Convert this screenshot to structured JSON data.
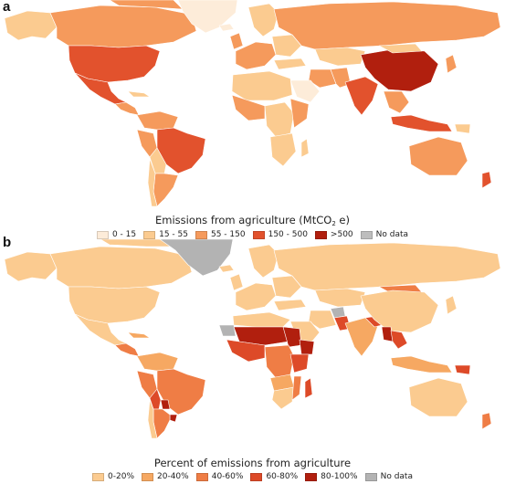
{
  "panel_a": {
    "letter": "a",
    "legend_title_prefix": "Emissions from agriculture (MtCO",
    "legend_title_sub": "2",
    "legend_title_suffix": " e)",
    "legend": [
      {
        "label": "0 - 15",
        "color": "#fdecd9"
      },
      {
        "label": "15 - 55",
        "color": "#fbcb90"
      },
      {
        "label": "55 - 150",
        "color": "#f59a5c"
      },
      {
        "label": "150 - 500",
        "color": "#e2522d"
      },
      {
        "label": ">500",
        "color": "#b11f0e"
      },
      {
        "label": "No data",
        "color": "#bdbdbd"
      }
    ]
  },
  "panel_b": {
    "letter": "b",
    "legend_title": "Percent of emissions from agriculture",
    "legend": [
      {
        "label": "0-20%",
        "color": "#fbcb90"
      },
      {
        "label": "20-40%",
        "color": "#f6a862"
      },
      {
        "label": "40-60%",
        "color": "#ef7d45"
      },
      {
        "label": "60-80%",
        "color": "#dd4a28"
      },
      {
        "label": "80-100%",
        "color": "#b11f0e"
      },
      {
        "label": "No data",
        "color": "#b3b3b3"
      }
    ]
  }
}
